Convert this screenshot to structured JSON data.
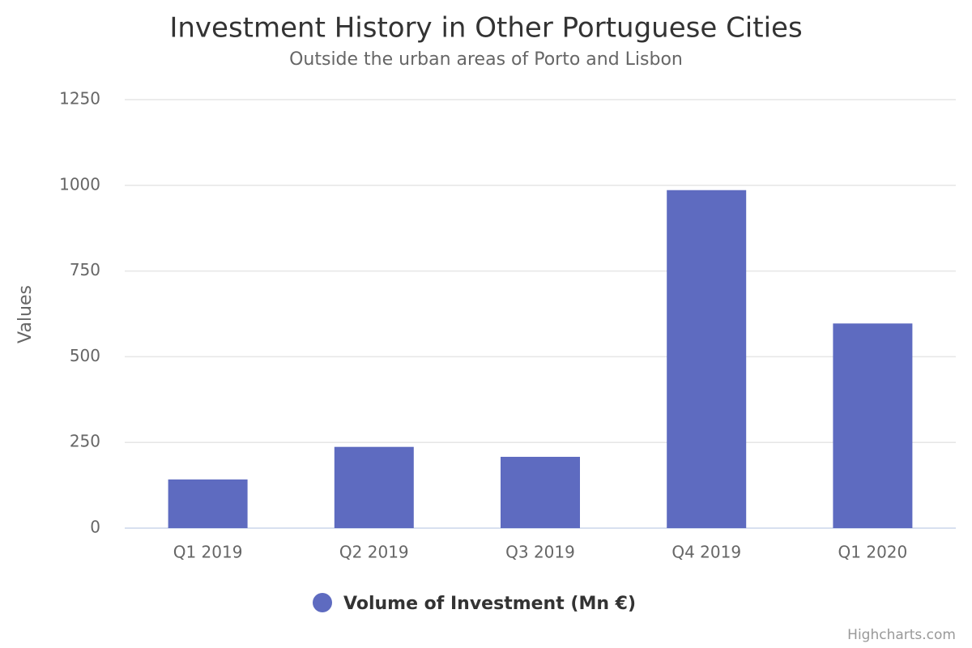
{
  "chart_data": {
    "type": "bar",
    "title": "Investment History in Other Portuguese Cities",
    "subtitle": "Outside the urban areas of Porto and Lisbon",
    "y_label": "Values",
    "categories": [
      "Q1 2019",
      "Q2 2019",
      "Q3 2019",
      "Q4 2019",
      "Q1 2020"
    ],
    "series": [
      {
        "name": "Volume of Investment (Mn €)",
        "color": "#5e6bc0",
        "values": [
          142,
          237,
          208,
          986,
          597
        ]
      }
    ],
    "ylim": [
      0,
      1250
    ],
    "yticks": [
      0,
      250,
      500,
      750,
      1000,
      1250
    ],
    "grid": true,
    "credits": "Highcharts.com"
  }
}
